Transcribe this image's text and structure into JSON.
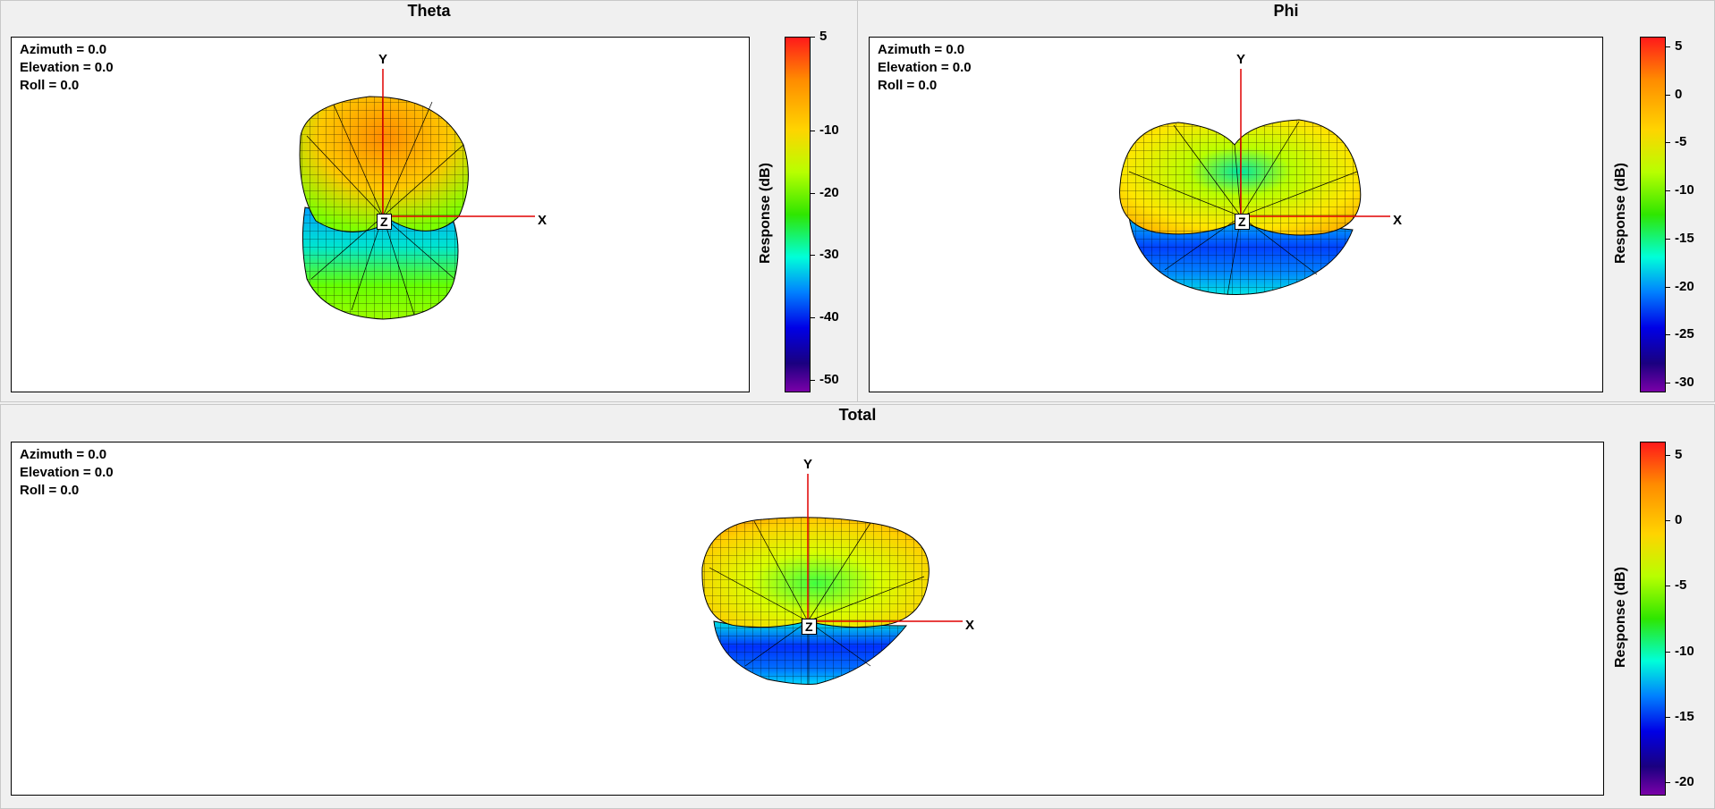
{
  "panels": {
    "theta": {
      "title": "Theta",
      "azimuth": "Azimuth = 0.0",
      "elevation": "Elevation = 0.0",
      "roll": "Roll = 0.0",
      "axis_x": "X",
      "axis_y": "Y",
      "axis_z": "Z",
      "colorbar_label": "Response  (dB)",
      "colorbar_ticks": [
        "5",
        "-10",
        "-20",
        "-30",
        "-40",
        "-50"
      ]
    },
    "phi": {
      "title": "Phi",
      "azimuth": "Azimuth = 0.0",
      "elevation": "Elevation = 0.0",
      "roll": "Roll = 0.0",
      "axis_x": "X",
      "axis_y": "Y",
      "axis_z": "Z",
      "colorbar_label": "Response  (dB)",
      "colorbar_ticks": [
        "5",
        "0",
        "-5",
        "-10",
        "-15",
        "-20",
        "-25",
        "-30"
      ]
    },
    "total": {
      "title": "Total",
      "azimuth": "Azimuth = 0.0",
      "elevation": "Elevation = 0.0",
      "roll": "Roll = 0.0",
      "axis_x": "X",
      "axis_y": "Y",
      "axis_z": "Z",
      "colorbar_label": "Response  (dB)",
      "colorbar_ticks": [
        "5",
        "0",
        "-5",
        "-10",
        "-15",
        "-20"
      ]
    }
  },
  "chart_data": [
    {
      "type": "heatmap",
      "title": "Theta",
      "view": {
        "azimuth": 0.0,
        "elevation": 0.0,
        "roll": 0.0
      },
      "colorbar": {
        "label": "Response  (dB)",
        "range": [
          -52,
          5
        ],
        "ticks": [
          5,
          -10,
          -20,
          -30,
          -40,
          -50
        ]
      },
      "pattern_colors": {
        "top_lobe": "#ff9a00",
        "mid": "#8cff00",
        "lower_lobe": "#00bfff",
        "null": "#0033cc"
      }
    },
    {
      "type": "heatmap",
      "title": "Phi",
      "view": {
        "azimuth": 0.0,
        "elevation": 0.0,
        "roll": 0.0
      },
      "colorbar": {
        "label": "Response  (dB)",
        "range": [
          -31,
          6
        ],
        "ticks": [
          5,
          0,
          -5,
          -10,
          -15,
          -20,
          -25,
          -30
        ]
      },
      "pattern_colors": {
        "side_lobes": "#ffe600",
        "mid": "#66ff00",
        "lower_lobe": "#0066ff",
        "null": "#000099"
      }
    },
    {
      "type": "heatmap",
      "title": "Total",
      "view": {
        "azimuth": 0.0,
        "elevation": 0.0,
        "roll": 0.0
      },
      "colorbar": {
        "label": "Response  (dB)",
        "range": [
          -21,
          6
        ],
        "ticks": [
          5,
          0,
          -5,
          -10,
          -15,
          -20
        ]
      },
      "pattern_colors": {
        "top_lobe": "#f2e600",
        "mid": "#8cff00",
        "lower_lobe": "#0050ff",
        "null": "#0000aa"
      }
    }
  ]
}
